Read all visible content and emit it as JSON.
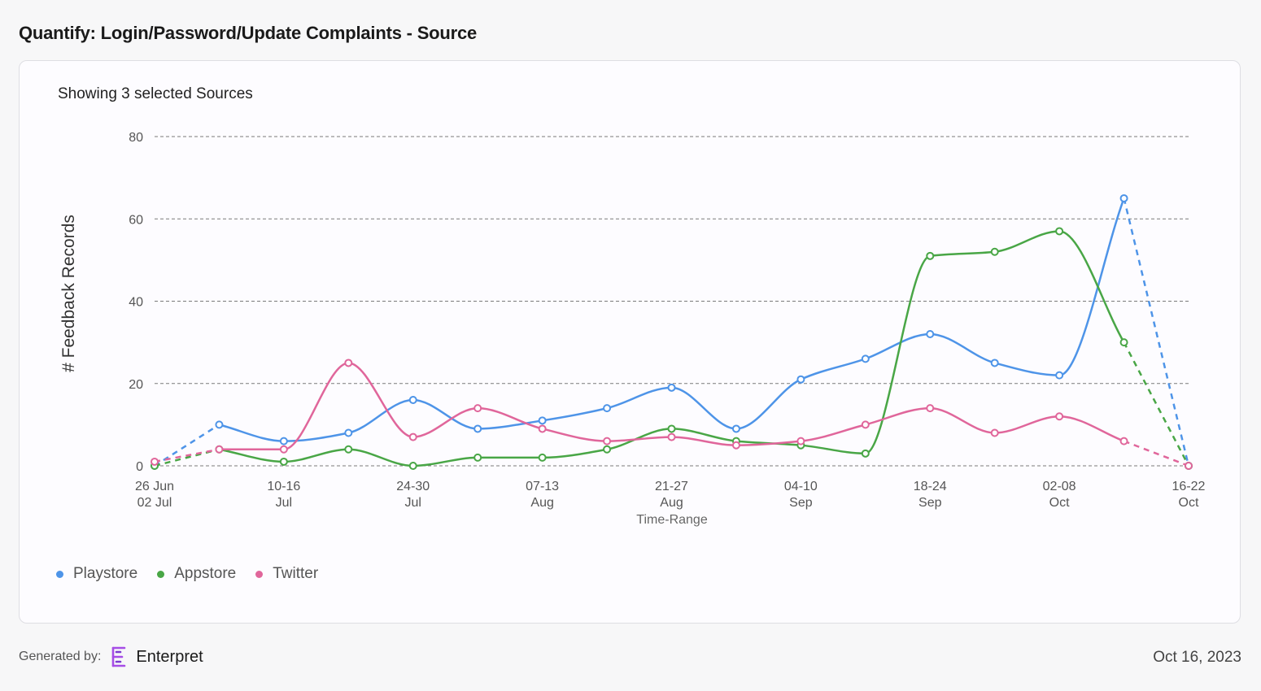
{
  "header": {
    "title": "Quantify: Login/Password/Update Complaints - Source"
  },
  "card": {
    "subtitle": "Showing 3 selected Sources"
  },
  "footer": {
    "generated_by_label": "Generated by:",
    "brand_name": "Enterpret",
    "brand_icon": "enterpret-logo-icon",
    "date": "Oct 16, 2023"
  },
  "chart_data": {
    "type": "line",
    "title": "",
    "xlabel": "Time-Range",
    "ylabel": "# Feedback Records",
    "ylim": [
      0,
      80
    ],
    "yticks": [
      0,
      20,
      40,
      60,
      80
    ],
    "grid": true,
    "legend_position": "bottom-left",
    "curve": "smooth",
    "x_count": 17,
    "tick_labels": [
      {
        "index": 0,
        "line1": "26 Jun",
        "line2": "02 Jul"
      },
      {
        "index": 2,
        "line1": "10-16",
        "line2": "Jul"
      },
      {
        "index": 4,
        "line1": "24-30",
        "line2": "Jul"
      },
      {
        "index": 6,
        "line1": "07-13",
        "line2": "Aug"
      },
      {
        "index": 8,
        "line1": "21-27",
        "line2": "Aug"
      },
      {
        "index": 10,
        "line1": "04-10",
        "line2": "Sep"
      },
      {
        "index": 12,
        "line1": "18-24",
        "line2": "Sep"
      },
      {
        "index": 14,
        "line1": "02-08",
        "line2": "Oct"
      },
      {
        "index": 16,
        "line1": "16-22",
        "line2": "Oct"
      }
    ],
    "series": [
      {
        "name": "Playstore",
        "color": "#4e94e8",
        "values": [
          0,
          10,
          6,
          8,
          16,
          9,
          11,
          14,
          19,
          9,
          21,
          26,
          32,
          25,
          22,
          65,
          0
        ]
      },
      {
        "name": "Appstore",
        "color": "#49a646",
        "values": [
          0,
          4,
          1,
          4,
          0,
          2,
          2,
          4,
          9,
          6,
          5,
          3,
          51,
          52,
          57,
          30,
          0
        ]
      },
      {
        "name": "Twitter",
        "color": "#e0669b",
        "values": [
          1,
          4,
          4,
          25,
          7,
          14,
          9,
          6,
          7,
          5,
          6,
          10,
          14,
          8,
          12,
          6,
          0
        ]
      }
    ],
    "dashed_segments": "first and last segment of each series are dashed (partial periods)"
  }
}
